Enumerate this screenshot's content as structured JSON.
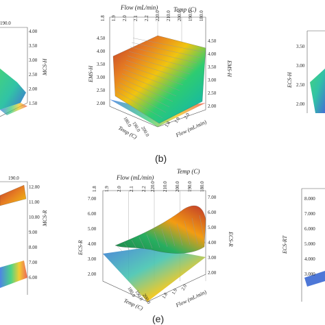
{
  "figure": {
    "captions": {
      "b": "(b)",
      "e": "(e)"
    }
  },
  "chart_data": [
    {
      "type": "surface",
      "panel": "a",
      "zlabel": "MCS-H",
      "z_ticks": [
        "4.00",
        "3.50",
        "3.00",
        "2.50",
        "2.00",
        "1.50"
      ],
      "temp_ticks_visible": [
        "190.0"
      ]
    },
    {
      "type": "surface",
      "panel": "b",
      "zlabel": "EMS-H",
      "caption": "(b)",
      "xlabel": "Flow (mL/min)",
      "ylabel": "Temp (C)",
      "flow_ticks": [
        "1.8",
        "1.9",
        "2.0",
        "2.1",
        "2.2"
      ],
      "temp_ticks": [
        "220.0",
        "210.0",
        "200.0",
        "190.0",
        "180.0"
      ],
      "z_ticks": [
        "4.50",
        "4.00",
        "3.50",
        "3.00",
        "2.50",
        "2.00"
      ],
      "zlim": [
        2.0,
        4.5
      ],
      "surface_trend": "linear, increasing with temperature"
    },
    {
      "type": "surface",
      "panel": "c",
      "zlabel": "ECS-H",
      "z_ticks": [
        "3.50",
        "3.00",
        "2.50",
        "2.00"
      ]
    },
    {
      "type": "surface",
      "panel": "d",
      "zlabel": "MCS-R",
      "z_ticks": [
        "12.00",
        "11.00",
        "10.00",
        "9.00",
        "8.00",
        "7.00",
        "6.00"
      ],
      "temp_ticks_visible": [
        "190.0"
      ]
    },
    {
      "type": "surface",
      "panel": "e",
      "zlabel": "ECS-R",
      "caption": "(e)",
      "xlabel": "Flow (mL/min)",
      "ylabel": "Temp (C)",
      "flow_ticks": [
        "1.8",
        "1.9",
        "2.0",
        "2.1",
        "2.2"
      ],
      "temp_ticks": [
        "220.0",
        "210.0",
        "200.0",
        "190.0",
        "180.0"
      ],
      "z_ticks": [
        "7.00",
        "6.00",
        "5.00",
        "4.00",
        "3.00",
        "2.00"
      ],
      "zlim": [
        2.0,
        7.0
      ],
      "surface_trend": "curved ridge, peak at high temp and high flow"
    },
    {
      "type": "surface",
      "panel": "f",
      "zlabel": "ECS-RT",
      "z_ticks": [
        "8.000",
        "7.000",
        "6.000",
        "5.000",
        "4.000",
        "3.000"
      ]
    }
  ]
}
